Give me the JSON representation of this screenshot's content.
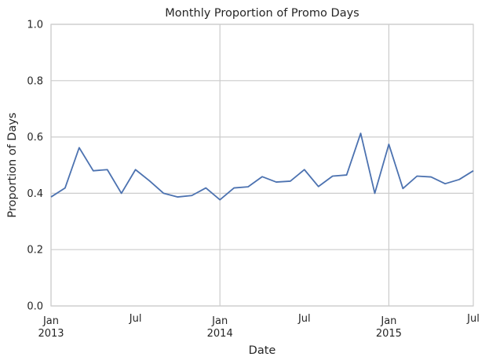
{
  "chart_data": {
    "type": "line",
    "title": "Monthly Proportion of Promo Days",
    "xlabel": "Date",
    "ylabel": "Proportion of Days",
    "ylim": [
      0,
      1
    ],
    "yticks": [
      "0.0",
      "0.2",
      "0.4",
      "0.6",
      "0.8",
      "1.0"
    ],
    "xlim": [
      "2013-01",
      "2015-07"
    ],
    "xticks": [
      {
        "x": "2013-01",
        "line1": "Jan",
        "line2": "2013",
        "major": true
      },
      {
        "x": "2013-07",
        "line1": "Jul",
        "line2": "",
        "major": false
      },
      {
        "x": "2014-01",
        "line1": "Jan",
        "line2": "2014",
        "major": true
      },
      {
        "x": "2014-07",
        "line1": "Jul",
        "line2": "",
        "major": false
      },
      {
        "x": "2015-01",
        "line1": "Jan",
        "line2": "2015",
        "major": true
      },
      {
        "x": "2015-07",
        "line1": "Jul",
        "line2": "",
        "major": false
      }
    ],
    "grid": true,
    "series": [
      {
        "color": "#4c72b0",
        "x": [
          "2013-01",
          "2013-02",
          "2013-03",
          "2013-04",
          "2013-05",
          "2013-06",
          "2013-07",
          "2013-08",
          "2013-09",
          "2013-10",
          "2013-11",
          "2013-12",
          "2014-01",
          "2014-02",
          "2014-03",
          "2014-04",
          "2014-05",
          "2014-06",
          "2014-07",
          "2014-08",
          "2014-09",
          "2014-10",
          "2014-11",
          "2014-12",
          "2015-01",
          "2015-02",
          "2015-03",
          "2015-04",
          "2015-05",
          "2015-06",
          "2015-07"
        ],
        "values": [
          0.387,
          0.419,
          0.562,
          0.48,
          0.484,
          0.4,
          0.484,
          0.444,
          0.4,
          0.387,
          0.392,
          0.419,
          0.377,
          0.419,
          0.423,
          0.459,
          0.44,
          0.443,
          0.484,
          0.424,
          0.461,
          0.465,
          0.613,
          0.4,
          0.574,
          0.417,
          0.461,
          0.458,
          0.434,
          0.449,
          0.48
        ]
      }
    ]
  }
}
